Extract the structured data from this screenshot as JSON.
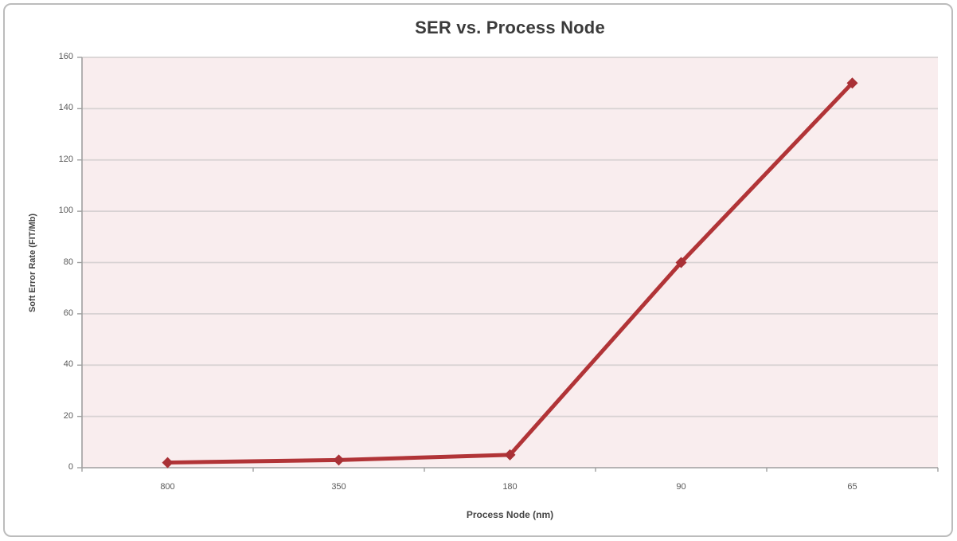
{
  "chart_data": {
    "type": "line",
    "title": "SER vs. Process Node",
    "xlabel": "Process Node (nm)",
    "ylabel": "Soft Error Rate (FIT/Mb)",
    "categories": [
      "800",
      "350",
      "180",
      "90",
      "65"
    ],
    "series": [
      {
        "name": "SER",
        "values": [
          2,
          3,
          5,
          80,
          150
        ]
      }
    ],
    "ylim": [
      0,
      160
    ],
    "yticks": [
      0,
      20,
      40,
      60,
      80,
      100,
      120,
      140,
      160
    ],
    "grid": "horizontal",
    "legend_position": "none",
    "marker": "diamond",
    "colors": {
      "line": "#b13437",
      "marker": "#a93136",
      "plot_background": "#f9edee",
      "gridline": "#d8d2d3",
      "axis": "#9f9f9f",
      "tick_label": "#595959",
      "axis_title": "#454545",
      "title": "#3b3b3b",
      "frame_border": "#bcbcbc",
      "background": "#ffffff"
    }
  }
}
